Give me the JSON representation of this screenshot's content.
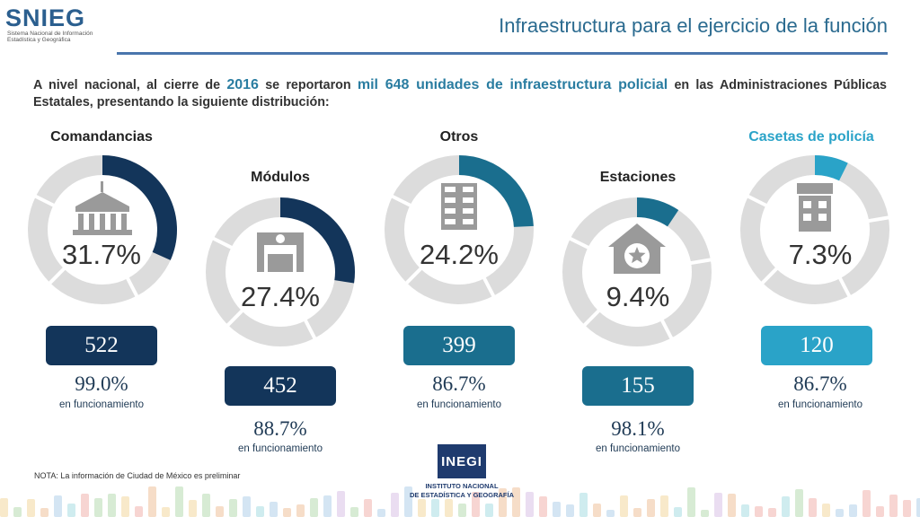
{
  "logo": {
    "brand": "SNIEG",
    "sub_line1": "Sistema Nacional de Información",
    "sub_line2": "Estadística y Geográfica"
  },
  "title": "Infraestructura para el ejercicio de la función",
  "intro": {
    "part1": "A nivel nacional, al cierre de ",
    "year": "2016",
    "part2": " se reportaron ",
    "highlight": "mil 648 unidades de infraestructura policial",
    "part3": " en las Administraciones Públicas Estatales, presentando la siguiente distribución:"
  },
  "colors": {
    "dark": "#13355a",
    "teal": "#1a6e8e",
    "light": "#2aa3c8",
    "track": "#dcdcdc",
    "icon": "#9a9a9a"
  },
  "chart_data": {
    "type": "pie",
    "categories": [
      "Comandancias",
      "Módulos",
      "Otros",
      "Estaciones",
      "Casetas de policía"
    ],
    "values": [
      31.7,
      27.4,
      24.2,
      9.4,
      7.3
    ],
    "value_labels": [
      "31.7%",
      "27.4%",
      "24.2%",
      "9.4%",
      "7.3%"
    ],
    "counts": [
      "522",
      "452",
      "399",
      "155",
      "120"
    ],
    "functioning_pct": [
      "99.0%",
      "88.7%",
      "86.7%",
      "98.1%",
      "86.7%"
    ],
    "functioning_label": "en funcionamiento",
    "icons": [
      "government-building-icon",
      "police-module-icon",
      "office-building-icon",
      "police-station-icon",
      "police-booth-icon"
    ]
  },
  "note": "NOTA: La información de Ciudad de México es preliminar",
  "inegi": {
    "brand": "INEGI",
    "line1": "INSTITUTO NACIONAL",
    "line2": "DE ESTADÍSTICA Y GEOGRAFÍA"
  }
}
